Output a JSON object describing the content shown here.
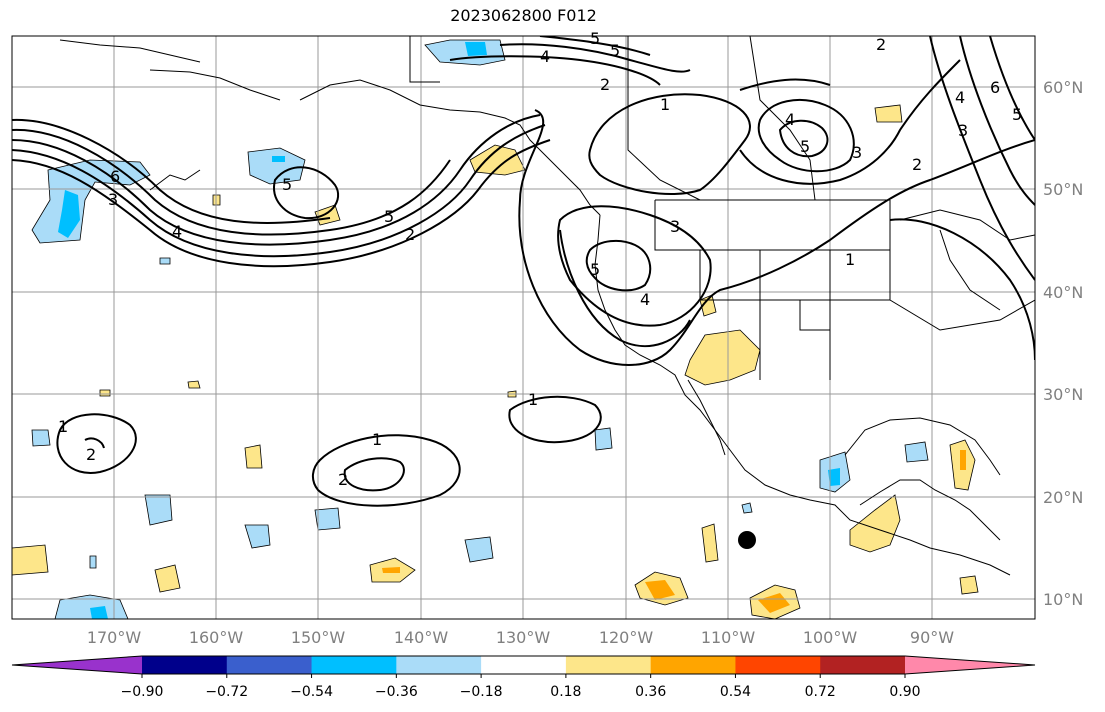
{
  "title": "2023062800 F012",
  "map": {
    "lon_ticks": [
      "170°W",
      "160°W",
      "150°W",
      "140°W",
      "130°W",
      "120°W",
      "110°W",
      "100°W",
      "90°W"
    ],
    "lat_ticks": [
      "60°N",
      "50°N",
      "40°N",
      "30°N",
      "20°N",
      "10°N"
    ],
    "marker": "black-dot"
  },
  "colorbar": {
    "ticks": [
      "−0.90",
      "−0.72",
      "−0.54",
      "−0.36",
      "−0.18",
      "0.18",
      "0.36",
      "0.54",
      "0.72",
      "0.90"
    ],
    "colors": [
      "#9932cc",
      "#00008b",
      "#3a5fcd",
      "#00bfff",
      "#aadcf8",
      "#ffffff",
      "#fde68a",
      "#ffa500",
      "#ff4500",
      "#b22222",
      "#ff88aa"
    ]
  },
  "contour_labels": [
    "1",
    "2",
    "3",
    "4",
    "5",
    "6"
  ]
}
